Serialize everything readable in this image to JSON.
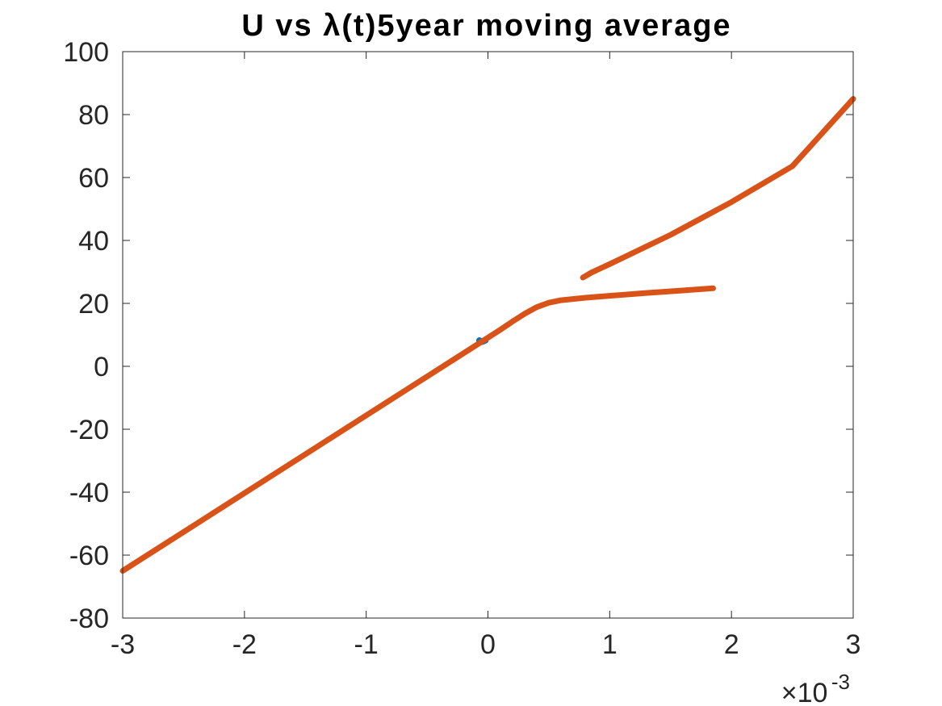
{
  "chart_data": {
    "type": "line",
    "title": "U vs λ(t)5year moving average",
    "xlabel": "",
    "ylabel": "",
    "xlim": [
      -0.003,
      0.003
    ],
    "ylim": [
      -80,
      100
    ],
    "x_ticks": [
      -0.003,
      -0.002,
      -0.001,
      0,
      0.001,
      0.002,
      0.003
    ],
    "x_tick_labels": [
      "-3",
      "-2",
      "-1",
      "0",
      "1",
      "2",
      "3"
    ],
    "x_exponent_label": {
      "base": "×10",
      "exponent": "-3"
    },
    "y_ticks": [
      -80,
      -60,
      -40,
      -20,
      0,
      20,
      40,
      60,
      80,
      100
    ],
    "y_tick_labels": [
      "-80",
      "-60",
      "-40",
      "-20",
      "0",
      "20",
      "40",
      "60",
      "80",
      "100"
    ],
    "grid": false,
    "legend": "none",
    "series": [
      {
        "color": "#0072BD",
        "x": [
          -7e-05,
          -5e-05,
          -2e-05
        ],
        "y": [
          8.2,
          7.8,
          8.3
        ]
      },
      {
        "color": "#D95319",
        "x": [
          -0.003,
          -0.002,
          -0.001,
          0,
          0.0001,
          0.0002,
          0.0003,
          0.0004,
          0.0005,
          0.0006,
          0.0008,
          0.001,
          0.0013,
          0.0016,
          0.00185
        ],
        "y": [
          -65,
          -40.3,
          -15.6,
          9.1,
          11.6,
          14.2,
          16.7,
          18.8,
          20.2,
          21,
          21.8,
          22.4,
          23.3,
          24.1,
          24.8
        ]
      },
      {
        "color": "#D95319",
        "x": [
          0.00078,
          0.00085,
          0.001,
          0.0015,
          0.002,
          0.0025,
          0.003
        ],
        "y": [
          28.2,
          29.8,
          32.5,
          41.8,
          52.2,
          63.6,
          85
        ]
      }
    ]
  }
}
